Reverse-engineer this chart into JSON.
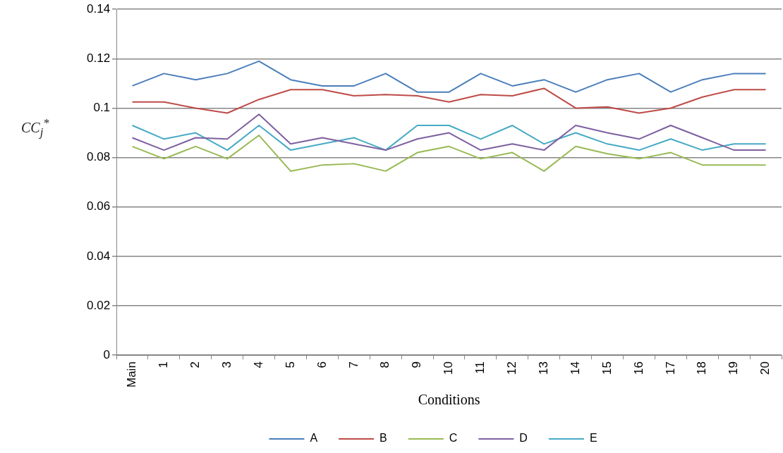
{
  "chart_data": {
    "type": "line",
    "xlabel": "Conditions",
    "ylabel": "CC$_{j}$$^{*}$",
    "categories": [
      "Main",
      "1",
      "2",
      "3",
      "4",
      "5",
      "6",
      "7",
      "8",
      "9",
      "10",
      "11",
      "12",
      "13",
      "14",
      "15",
      "16",
      "17",
      "18",
      "19",
      "20"
    ],
    "ylim": [
      0,
      0.14
    ],
    "yticks": [
      0,
      0.02,
      0.04,
      0.06,
      0.08,
      0.1,
      0.12,
      0.14
    ],
    "grid": "y",
    "legend": "bottom",
    "marker": "none",
    "line_style": "solid",
    "series": [
      {
        "name": "A",
        "color": "#4a7ebb",
        "values": [
          0.109,
          0.114,
          0.1115,
          0.114,
          0.119,
          0.1115,
          0.109,
          0.109,
          0.114,
          0.1065,
          0.1065,
          0.114,
          0.109,
          0.1115,
          0.1065,
          0.1115,
          0.114,
          0.1065,
          0.1115,
          0.114,
          0.114
        ]
      },
      {
        "name": "B",
        "color": "#be4b48",
        "values": [
          0.1025,
          0.1025,
          0.1,
          0.098,
          0.1035,
          0.1075,
          0.1075,
          0.105,
          0.1055,
          0.105,
          0.1025,
          0.1055,
          0.105,
          0.108,
          0.1,
          0.1005,
          0.098,
          0.1,
          0.1045,
          0.1075,
          0.1075
        ]
      },
      {
        "name": "C",
        "color": "#98b954",
        "values": [
          0.0845,
          0.0795,
          0.0845,
          0.0795,
          0.089,
          0.0745,
          0.077,
          0.0775,
          0.0745,
          0.082,
          0.0845,
          0.0795,
          0.082,
          0.0745,
          0.0845,
          0.0815,
          0.0795,
          0.082,
          0.077,
          0.077,
          0.077
        ]
      },
      {
        "name": "D",
        "color": "#7d60a0",
        "values": [
          0.088,
          0.083,
          0.088,
          0.0875,
          0.0975,
          0.0855,
          0.088,
          0.0855,
          0.083,
          0.0875,
          0.09,
          0.083,
          0.0855,
          0.083,
          0.093,
          0.09,
          0.0875,
          0.093,
          0.088,
          0.083,
          0.083
        ]
      },
      {
        "name": "E",
        "color": "#46aac5",
        "values": [
          0.093,
          0.0875,
          0.09,
          0.083,
          0.093,
          0.083,
          0.0855,
          0.088,
          0.083,
          0.093,
          0.093,
          0.0875,
          0.093,
          0.0855,
          0.09,
          0.0855,
          0.083,
          0.0875,
          0.083,
          0.0855,
          0.0855
        ]
      }
    ]
  }
}
